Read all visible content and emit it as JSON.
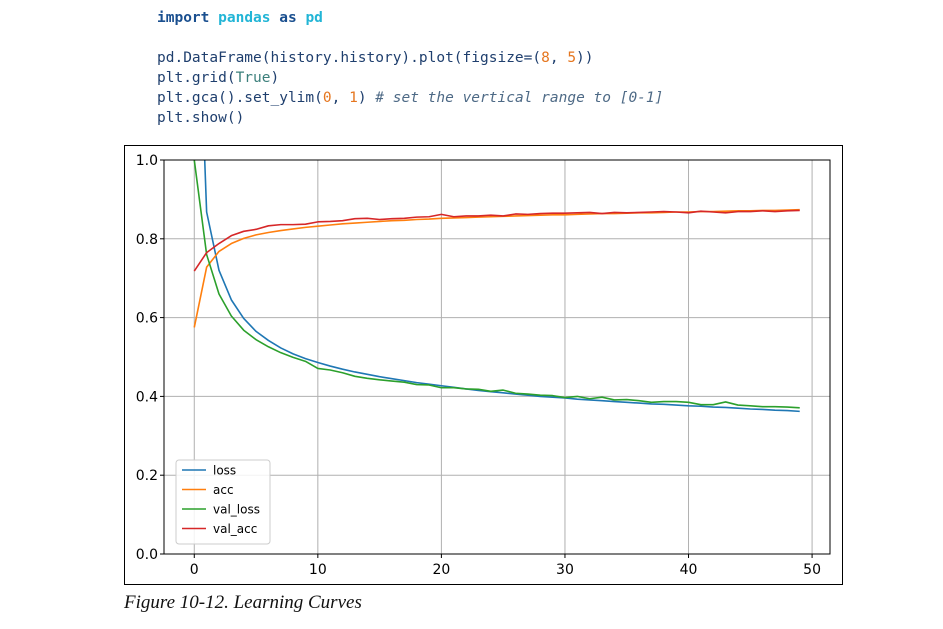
{
  "code": {
    "line1": [
      {
        "text": "import",
        "cls": "kw"
      },
      {
        "text": " "
      },
      {
        "text": "pandas",
        "cls": "mod"
      },
      {
        "text": " "
      },
      {
        "text": "as",
        "cls": "kw"
      },
      {
        "text": " "
      },
      {
        "text": "pd",
        "cls": "mod"
      }
    ],
    "line2": [],
    "line3": [
      {
        "text": "pd.DataFrame(history.history).plot(figsize=("
      },
      {
        "text": "8",
        "cls": "num"
      },
      {
        "text": ", "
      },
      {
        "text": "5",
        "cls": "num"
      },
      {
        "text": "))"
      }
    ],
    "line4": [
      {
        "text": "plt.grid("
      },
      {
        "text": "True",
        "cls": "bi"
      },
      {
        "text": ")"
      }
    ],
    "line5": [
      {
        "text": "plt.gca().set_ylim("
      },
      {
        "text": "0",
        "cls": "num"
      },
      {
        "text": ", "
      },
      {
        "text": "1",
        "cls": "num"
      },
      {
        "text": ") "
      },
      {
        "text": "# set the vertical range to [0-1]",
        "cls": "cm"
      }
    ],
    "line6": [
      {
        "text": "plt.show()"
      }
    ]
  },
  "caption": "Figure 10-12. Learning Curves",
  "chart_data": {
    "type": "line",
    "title": "",
    "xlabel": "",
    "ylabel": "",
    "xlim": [
      -2.45,
      51.45
    ],
    "ylim": [
      0,
      1
    ],
    "xticks": [
      0,
      10,
      20,
      30,
      40,
      50
    ],
    "yticks": [
      0.0,
      0.2,
      0.4,
      0.6,
      0.8,
      1.0
    ],
    "xtick_labels": [
      "0",
      "10",
      "20",
      "30",
      "40",
      "50"
    ],
    "ytick_labels": [
      "0.0",
      "0.2",
      "0.4",
      "0.6",
      "0.8",
      "1.0"
    ],
    "grid": true,
    "legend_position": "lower-left",
    "x": [
      0,
      1,
      2,
      3,
      4,
      5,
      6,
      7,
      8,
      9,
      10,
      11,
      12,
      13,
      14,
      15,
      16,
      17,
      18,
      19,
      20,
      21,
      22,
      23,
      24,
      25,
      26,
      27,
      28,
      29,
      30,
      31,
      32,
      33,
      34,
      35,
      36,
      37,
      38,
      39,
      40,
      41,
      42,
      43,
      44,
      45,
      46,
      47,
      48,
      49
    ],
    "series": [
      {
        "name": "loss",
        "color": "#1f77b4",
        "values": [
          1.72,
          0.868,
          0.72,
          0.645,
          0.598,
          0.565,
          0.542,
          0.523,
          0.508,
          0.496,
          0.486,
          0.477,
          0.469,
          0.462,
          0.456,
          0.45,
          0.445,
          0.44,
          0.435,
          0.431,
          0.427,
          0.423,
          0.419,
          0.415,
          0.412,
          0.409,
          0.406,
          0.403,
          0.4,
          0.398,
          0.396,
          0.393,
          0.391,
          0.389,
          0.387,
          0.385,
          0.383,
          0.381,
          0.38,
          0.378,
          0.376,
          0.375,
          0.373,
          0.372,
          0.37,
          0.368,
          0.367,
          0.365,
          0.364,
          0.362
        ]
      },
      {
        "name": "acc",
        "color": "#ff7f0e",
        "values": [
          0.575,
          0.728,
          0.768,
          0.788,
          0.801,
          0.81,
          0.816,
          0.821,
          0.825,
          0.829,
          0.832,
          0.835,
          0.838,
          0.84,
          0.842,
          0.844,
          0.846,
          0.847,
          0.849,
          0.85,
          0.852,
          0.853,
          0.854,
          0.855,
          0.856,
          0.857,
          0.858,
          0.859,
          0.86,
          0.861,
          0.861,
          0.862,
          0.863,
          0.864,
          0.864,
          0.865,
          0.866,
          0.866,
          0.867,
          0.868,
          0.868,
          0.869,
          0.869,
          0.87,
          0.871,
          0.871,
          0.872,
          0.872,
          0.873,
          0.874
        ]
      },
      {
        "name": "val_loss",
        "color": "#2ca02c",
        "values": [
          1.0,
          0.76,
          0.66,
          0.604,
          0.568,
          0.544,
          0.526,
          0.511,
          0.499,
          0.489,
          0.471,
          0.467,
          0.46,
          0.451,
          0.446,
          0.442,
          0.439,
          0.436,
          0.43,
          0.429,
          0.422,
          0.422,
          0.419,
          0.418,
          0.413,
          0.416,
          0.408,
          0.406,
          0.403,
          0.402,
          0.397,
          0.4,
          0.394,
          0.398,
          0.391,
          0.392,
          0.389,
          0.385,
          0.387,
          0.387,
          0.385,
          0.379,
          0.379,
          0.386,
          0.378,
          0.376,
          0.374,
          0.374,
          0.373,
          0.371
        ]
      },
      {
        "name": "val_acc",
        "color": "#d62728",
        "values": [
          0.718,
          0.765,
          0.788,
          0.808,
          0.819,
          0.824,
          0.833,
          0.836,
          0.836,
          0.837,
          0.843,
          0.844,
          0.846,
          0.851,
          0.852,
          0.849,
          0.851,
          0.852,
          0.855,
          0.856,
          0.862,
          0.856,
          0.858,
          0.858,
          0.86,
          0.858,
          0.863,
          0.862,
          0.864,
          0.865,
          0.865,
          0.866,
          0.867,
          0.864,
          0.867,
          0.866,
          0.867,
          0.868,
          0.869,
          0.868,
          0.866,
          0.87,
          0.868,
          0.866,
          0.869,
          0.869,
          0.871,
          0.869,
          0.871,
          0.872
        ]
      }
    ]
  }
}
